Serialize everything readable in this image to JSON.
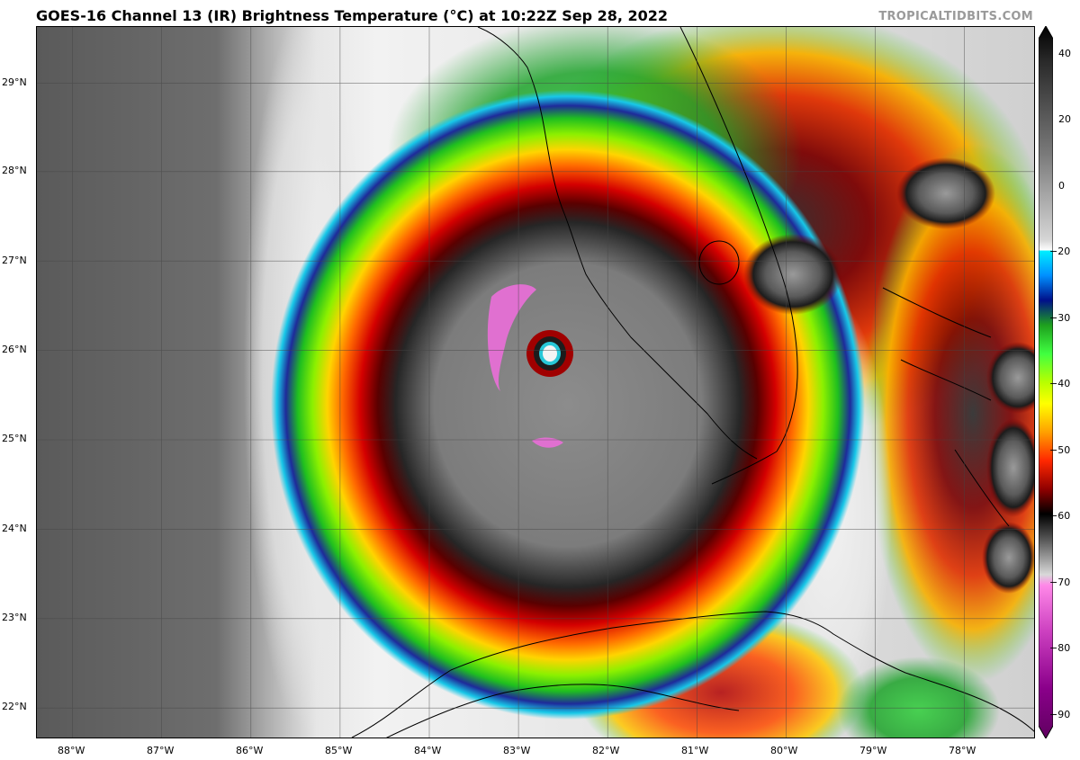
{
  "header": {
    "title": "GOES-16 Channel 13 (IR) Brightness Temperature (°C) at 10:22Z Sep 28, 2022",
    "credit": "TROPICALTIDBITS.COM"
  },
  "map": {
    "lat_labels": [
      "29°N",
      "28°N",
      "27°N",
      "26°N",
      "25°N",
      "24°N",
      "23°N",
      "22°N"
    ],
    "lon_labels": [
      "88°W",
      "87°W",
      "86°W",
      "85°W",
      "84°W",
      "83°W",
      "82°W",
      "81°W",
      "80°W",
      "79°W",
      "78°W"
    ],
    "lat_range": [
      21.65,
      29.62
    ],
    "lon_range": [
      -88.4,
      -77.2
    ],
    "storm_center": {
      "lon": -82.75,
      "lat": 26.0
    }
  },
  "colorbar": {
    "tick_labels": [
      "40",
      "20",
      "0",
      "−20",
      "−30",
      "−40",
      "−50",
      "−60",
      "−70",
      "−80",
      "−90"
    ],
    "tick_values": [
      40,
      20,
      0,
      -20,
      -30,
      -40,
      -50,
      -60,
      -70,
      -80,
      -90
    ],
    "range": [
      -95,
      45
    ]
  }
}
